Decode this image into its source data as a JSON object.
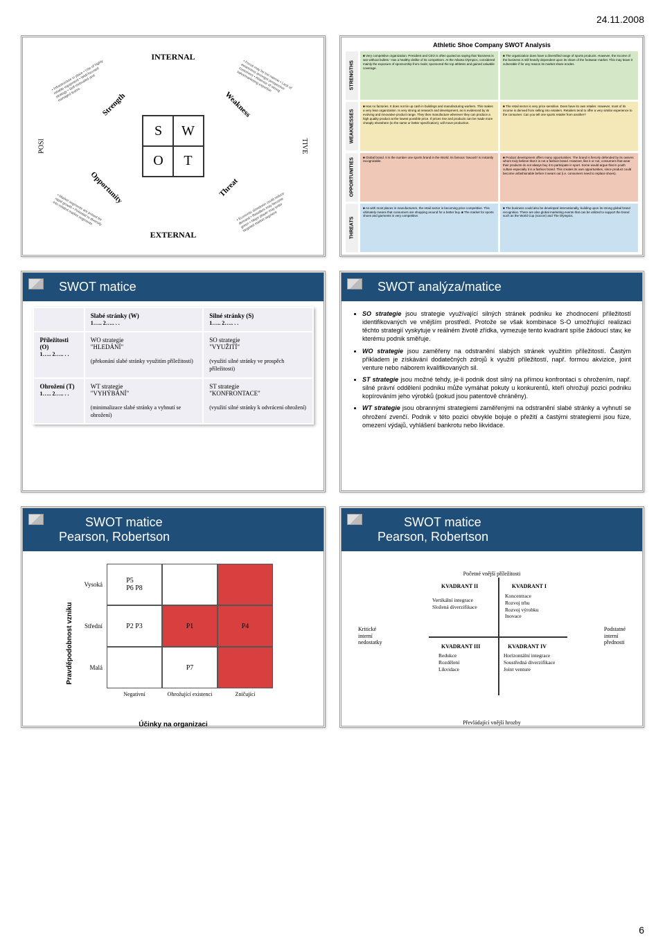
{
  "header": {
    "date": "24.11.2008",
    "page_num": "6"
  },
  "slide1": {
    "internal": "INTERNAL",
    "external": "EXTERNAL",
    "letters": [
      "S",
      "W",
      "O",
      "T"
    ],
    "strength": "Strength",
    "weakness": "Weakness",
    "opportunity": "Opportunity",
    "threat": "Threat",
    "side_left": "POSI",
    "side_right": "TIVE",
    "bullets_tl": "• Infrastructure in place\n• Use of highly reliable equipment\n• Well-focused strategy\n• Self-motivated and managed teams",
    "bullets_tr": "• Focus may be too narrow\n• Lack of awareness amongst prospective customers\n• Absence of strong sales/marketing expertise",
    "bullets_bl": "• Market segments are poised for rapid growth\n• Potential to diversify into related market segments",
    "bullets_br": "• Economic slowdown could reduce demand\n• Resellers may become green\n• Major player may enter targeted market segment"
  },
  "slide2": {
    "title": "Athletic Shoe Company SWOT Analysis",
    "side_labels": [
      "STRENGTHS",
      "WEAKNESSES",
      "OPPORTUNITIES",
      "THREATS"
    ],
    "s1": "■ Very competitive organization. President and CEO is often quoted as saying that 'Business is war without bullets.' Has a healthy dislike of its competitors. At the Atlanta Olympics, considered mainly the exposure of sponsorship from rivals; sponsored the top athletes and gained valuable coverage.",
    "s2": "■ The organization does have a diversified range of sports products. However, the income of the business is still heavily dependent upon its share of the footwear market. This may leave it vulnerable if for any reason its market share erodes.",
    "s3": "■ Has no factories. It does not tie up cash in buildings and manufacturing workers. This makes a very lean organization. Is very strong at research and development, as is evidenced by its evolving and innovative product range. They then manufacture wherever they can produce a high quality product at the lowest possible price. If prices rise and products can be made more cheaply elsewhere (to the same or better specification), will move production.",
    "s4": "■ The retail sector is very price sensitive. Does have its own retailer. However, most of its income is derived from selling into retailers. Retailers tend to offer a very similar experience to the consumer. Can you tell one sports retailer from another?",
    "s5": "■ Global brand. It is the number one sports brand in the World. Its famous 'Swoosh' is instantly recognizable.",
    "s6": "■ Product development offers many opportunities. The brand is fiercely defended by its owners whom truly believe that it is not a fashion brand. However, like it or not, consumers that wear their products do not always buy it to participate in sport. Some would argue that in youth culture especially it is a fashion brand. This creates its own opportunities, since product could become unfashionable before it wears out (i.e. consumers need to replace shoes).",
    "s7": "■ As with most places in manufacturers, the retail sector is becoming price competitive. This ultimately means that consumers are shopping around for a better buy.\n■ The market for sports shoes and garments is very competitive.",
    "s8": "■ The business could also be developed internationally, building upon its strong global brand recognition. There are also global marketing events that can be utilized to support the brand such as the World Cup (soccer) and The Olympics.",
    "colors": {
      "green": "#d4e8c8",
      "yellow": "#f5e8b8",
      "salmon": "#f0c8b8",
      "blue": "#c8e0f0"
    }
  },
  "slide3": {
    "title": "SWOT matice",
    "headers": [
      "",
      "Slabé stránky (W)",
      "Silné stránky (S)"
    ],
    "nums": "1…..\n2…..\n.\n.",
    "rows": [
      {
        "h": "Příležitosti (O)",
        "c1_title": "WO strategie",
        "c1_q": "\"HLEDÁNÍ\"",
        "c1_txt": "(překonání slabé stránky využitím příležitostí)",
        "c2_title": "SO strategie",
        "c2_q": "\"VYUŽITÍ\"",
        "c2_txt": "(využití silné stránky ve prospěch příležitosti)"
      },
      {
        "h": "Ohrožení (T)",
        "c1_title": "WT strategie",
        "c1_q": "\"VYHÝBÁNÍ\"",
        "c1_txt": "(minimalizace slabé stránky a vyhnutí se ohrožení)",
        "c2_title": "ST strategie",
        "c2_q": "\"KONFRONTACE\"",
        "c2_txt": "(využití silné stránky k odvrácení ohrožení)"
      }
    ]
  },
  "slide4": {
    "title": "SWOT analýza/matice",
    "bullets": [
      {
        "lead": "SO strategie",
        "text": " jsou strategie využívající silných stránek podniku ke zhodnocení příležitostí identifikovaných ve vnějším prostředí. Protože se však kombinace S-O umožňující realizaci těchto strategií vyskytuje v reálném životě zřídka, vymezuje tento kvadrant spíše žádoucí stav, ke kterému podnik směřuje."
      },
      {
        "lead": "WO strategie",
        "text": " jsou zaměřeny na odstranění slabých stránek využitím příležitostí. Častým příkladem je získávání dodatečných zdrojů k využití příležitostí, např. formou akvizice, joint venture nebo náborem kvalifikovaných sil."
      },
      {
        "lead": "ST strategie",
        "text": " jsou možné tehdy, je-li podnik dost silný na přímou konfrontaci s ohrožením, např. silné právní oddělení podniku může vymáhat pokuty u konkurentů, kteří ohrožují pozici podniku kopírováním jeho výrobků (pokud jsou patentově chráněny)."
      },
      {
        "lead": "WT strategie",
        "text": " jsou obrannými strategiemi zaměřenými na odstranění slabé stránky a vyhnutí se ohrožení zvenčí. Podnik v této pozici obvykle bojuje o přežití a častými strategiemi jsou fúze, omezení výdajů, vyhlášení bankrotu nebo likvidace."
      }
    ]
  },
  "slide5": {
    "title": "SWOT matice",
    "subtitle": "Pearson, Robertson",
    "ylabel": "Pravděpodobnost vzniku",
    "xlabel": "Účinky na organizaci",
    "yaxis": [
      "Vysoká",
      "Střední",
      "Malá"
    ],
    "xaxis": [
      "Negativní",
      "Ohrožující existenci",
      "Zničující"
    ],
    "cells": [
      [
        "P5\nP6 P8",
        "",
        ""
      ],
      [
        "P2 P3",
        "P1",
        "P4"
      ],
      [
        "",
        "P7",
        ""
      ]
    ],
    "red_cells": [
      [
        0,
        2
      ],
      [
        1,
        2
      ],
      [
        2,
        2
      ],
      [
        1,
        1
      ]
    ],
    "colors": {
      "red": "#d84040",
      "white": "#ffffff",
      "border": "#555555"
    }
  },
  "slide6": {
    "title": "SWOT matice",
    "subtitle": "Pearson, Robertson",
    "top_label": "Početné vnější příležitosti",
    "left_label": "Kritické\ninterní\nnedostatky",
    "right_label": "Podstatné\ninterní\npřednosti",
    "bottom_label": "Převládající vnější hrozby",
    "q1": "KVADRANT I",
    "q2": "KVADRANT II",
    "q3": "KVADRANT III",
    "q4": "KVADRANT IV",
    "q1_items": "Koncentrace\nRozvoj trhu\nRozvoj výrobku\nInovace",
    "q2_items": "Vertikální integrace\nSložená diverzifikace",
    "q3_items": "Redukce\nRozdělení\nLikvidace",
    "q4_items": "Horizontální integrace\nSoustředná diverzifikace\nJoint venture"
  }
}
